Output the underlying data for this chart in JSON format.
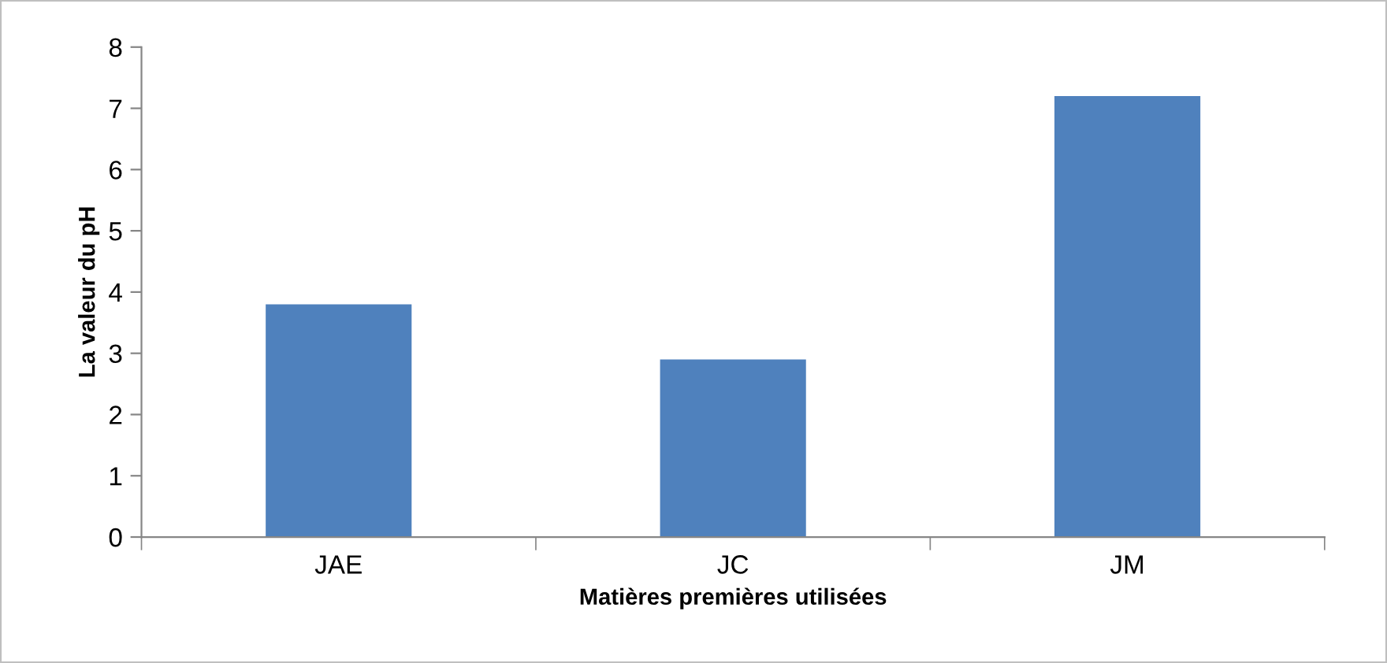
{
  "chart_data": {
    "type": "bar",
    "xlabel": "Matières premières utilisées",
    "ylabel": "La valeur du pH",
    "categories": [
      "JAE",
      "JC",
      "JM"
    ],
    "values": [
      3.8,
      2.9,
      7.2
    ],
    "color": "#4f81bd",
    "ylim": [
      0,
      8
    ],
    "yticks": [
      0,
      1,
      2,
      3,
      4,
      5,
      6,
      7,
      8
    ],
    "grid": false,
    "legend": false
  }
}
